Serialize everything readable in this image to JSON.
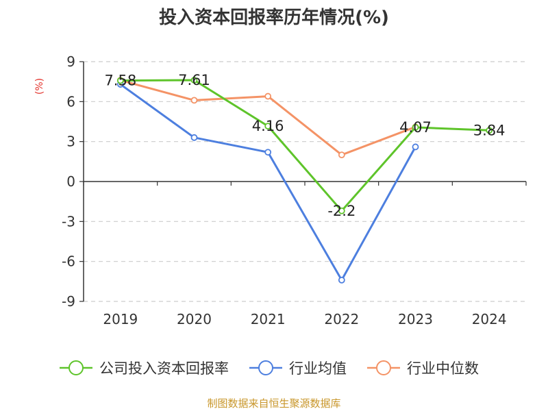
{
  "chart_data": {
    "type": "line",
    "title": "投入资本回报率历年情况(%)",
    "unit_label": "(%)",
    "categories": [
      "2019",
      "2020",
      "2021",
      "2022",
      "2023",
      "2024"
    ],
    "ylim": [
      -9,
      9
    ],
    "yticks": [
      9,
      6,
      3,
      0,
      -3,
      -6,
      -9
    ],
    "grid": true,
    "legend_position": "bottom",
    "series": [
      {
        "name": "公司投入资本回报率",
        "color": "#5ec42a",
        "values": [
          7.58,
          7.61,
          4.16,
          -2.2,
          4.07,
          3.84
        ],
        "labels": [
          "7.58",
          "7.61",
          "4.16",
          "-2.2",
          "4.07",
          "3.84"
        ]
      },
      {
        "name": "行业均值",
        "color": "#4d7fdf",
        "values": [
          7.3,
          3.3,
          2.2,
          -7.4,
          2.6,
          null
        ]
      },
      {
        "name": "行业中位数",
        "color": "#f49366",
        "values": [
          7.6,
          6.1,
          6.4,
          2.0,
          4.1,
          null
        ]
      }
    ],
    "source": "制图数据来自恒生聚源数据库"
  }
}
